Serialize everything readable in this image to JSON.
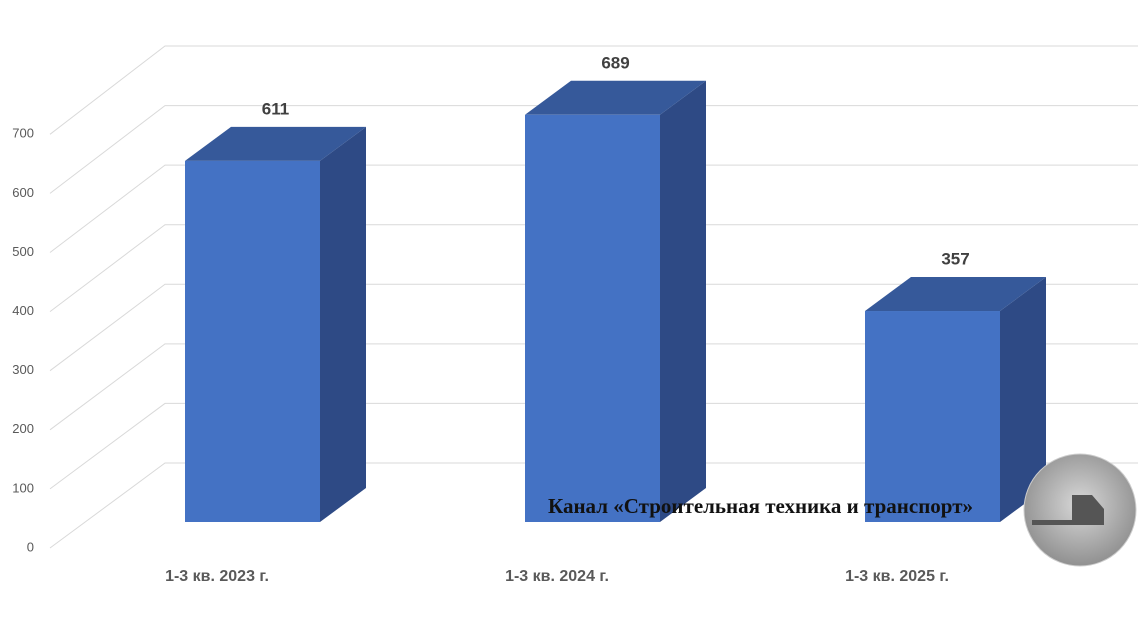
{
  "chart_data": {
    "type": "bar3d",
    "categories": [
      "1-3 кв. 2023 г.",
      "1-3 кв. 2024 г.",
      "1-3 кв. 2025 г."
    ],
    "values": [
      611,
      689,
      357
    ],
    "color": "#4472c4",
    "ylim": [
      0,
      700
    ],
    "yticks": [
      0,
      100,
      200,
      300,
      400,
      500,
      600,
      700
    ],
    "grid": true,
    "watermark": "Канал «Строительная техника и транспорт»"
  }
}
